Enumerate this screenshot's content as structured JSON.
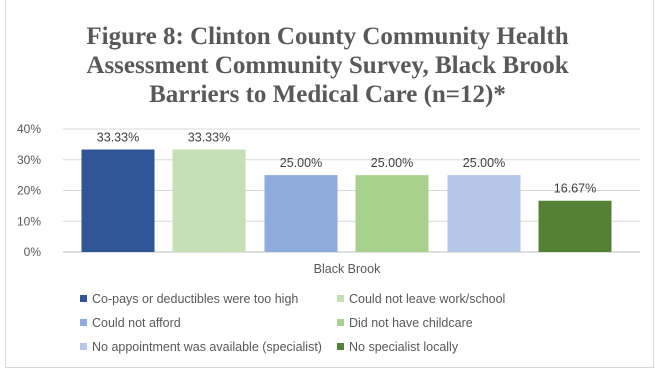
{
  "chart_data": {
    "type": "bar",
    "title_lines": [
      "Figure 8: Clinton County Community Health",
      "Assessment Community Survey, Black Brook",
      "Barriers to Medical Care (n=12)*"
    ],
    "categories": [
      "Black Brook"
    ],
    "xlabel": "Black Brook",
    "ylim": [
      0,
      40
    ],
    "yticks": [
      "40%",
      "30%",
      "20%",
      "10%",
      "0%"
    ],
    "ytick_values": [
      40,
      30,
      20,
      10,
      0
    ],
    "grid": true,
    "legend_position": "bottom",
    "series": [
      {
        "name": "Co-pays or deductibles were too high",
        "values": [
          33.33
        ],
        "label": "33.33%",
        "color": "#2f5597"
      },
      {
        "name": "Could not leave work/school",
        "values": [
          33.33
        ],
        "label": "33.33%",
        "color": "#c5e0b4"
      },
      {
        "name": "Could not afford",
        "values": [
          25.0
        ],
        "label": "25.00%",
        "color": "#8faadc"
      },
      {
        "name": "Did not have childcare",
        "values": [
          25.0
        ],
        "label": "25.00%",
        "color": "#a9d18e"
      },
      {
        "name": "No appointment was available (specialist)",
        "values": [
          25.0
        ],
        "label": "25.00%",
        "color": "#b4c7e7"
      },
      {
        "name": "No specialist locally",
        "values": [
          16.67
        ],
        "label": "16.67%",
        "color": "#548235"
      }
    ]
  }
}
